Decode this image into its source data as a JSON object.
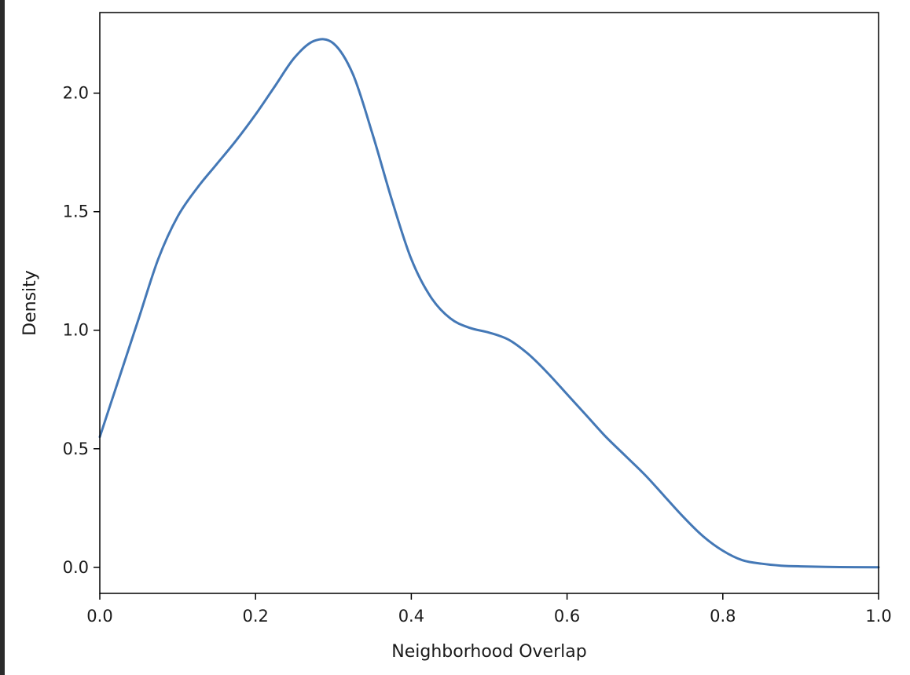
{
  "chart_data": {
    "type": "line",
    "title": "",
    "xlabel": "Neighborhood Overlap",
    "ylabel": "Density",
    "xlim": [
      0.0,
      1.0
    ],
    "ylim": [
      -0.11,
      2.34
    ],
    "x_ticks": [
      0.0,
      0.2,
      0.4,
      0.6,
      0.8,
      1.0
    ],
    "x_tick_labels": [
      "0.0",
      "0.2",
      "0.4",
      "0.6",
      "0.8",
      "1.0"
    ],
    "y_ticks": [
      0.0,
      0.5,
      1.0,
      1.5,
      2.0
    ],
    "y_tick_labels": [
      "0.0",
      "0.5",
      "1.0",
      "1.5",
      "2.0"
    ],
    "grid": false,
    "series": [
      {
        "color": "#4478b6",
        "x": [
          0.0,
          0.025,
          0.05,
          0.075,
          0.1,
          0.125,
          0.15,
          0.175,
          0.2,
          0.225,
          0.25,
          0.275,
          0.3,
          0.325,
          0.35,
          0.375,
          0.4,
          0.425,
          0.45,
          0.475,
          0.5,
          0.525,
          0.55,
          0.575,
          0.6,
          0.625,
          0.65,
          0.675,
          0.7,
          0.725,
          0.75,
          0.775,
          0.8,
          0.825,
          0.85,
          0.875,
          0.9,
          0.95,
          1.0
        ],
        "y": [
          0.55,
          0.8,
          1.05,
          1.3,
          1.48,
          1.6,
          1.7,
          1.8,
          1.91,
          2.03,
          2.15,
          2.22,
          2.21,
          2.08,
          1.83,
          1.55,
          1.3,
          1.14,
          1.05,
          1.01,
          0.99,
          0.96,
          0.9,
          0.82,
          0.73,
          0.64,
          0.55,
          0.47,
          0.39,
          0.3,
          0.21,
          0.13,
          0.07,
          0.03,
          0.015,
          0.007,
          0.004,
          0.001,
          0.0
        ]
      }
    ]
  }
}
